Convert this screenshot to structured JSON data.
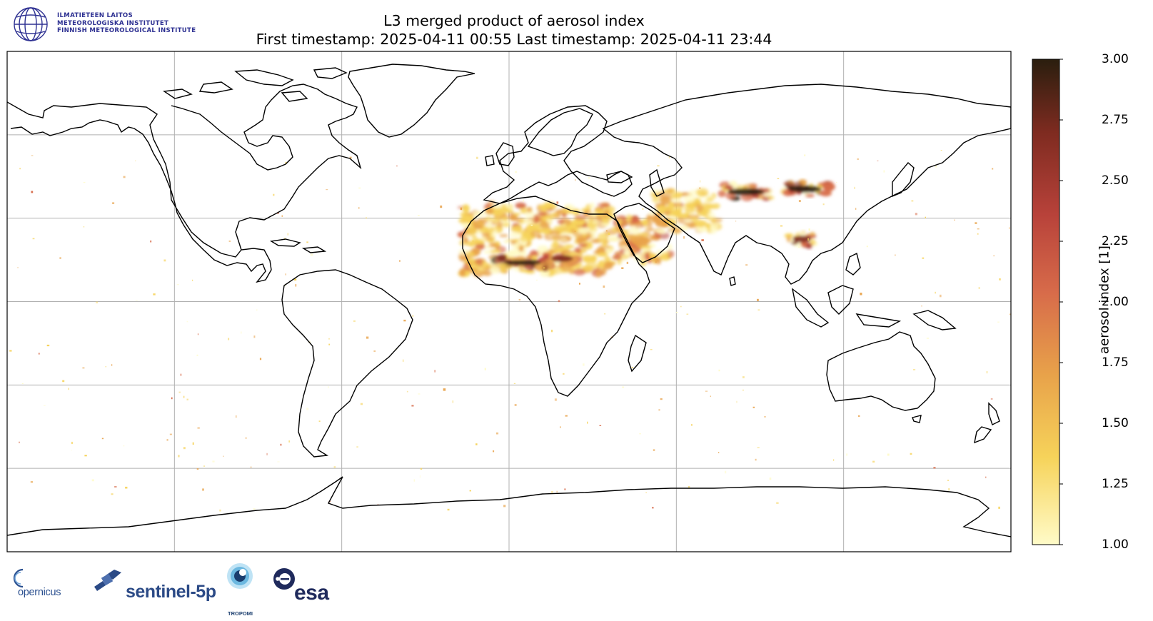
{
  "header": {
    "title_line1": "L3 merged product of aerosol index",
    "title_line2": "First timestamp: 2025-04-11 00:55   Last timestamp: 2025-04-11 23:44"
  },
  "institute": {
    "line1": "ILMATIETEEN LAITOS",
    "line2": "METEOROLOGISKA INSTITUTET",
    "line3": "FINNISH METEOROLOGICAL INSTITUTE",
    "color": "#2e3192"
  },
  "colorbar": {
    "label": "aerosol index [1]",
    "min": 1.0,
    "max": 3.0,
    "ticks": [
      "1.00",
      "1.25",
      "1.50",
      "1.75",
      "2.00",
      "2.25",
      "2.50",
      "2.75",
      "3.00"
    ],
    "colormap": "afmhot_r",
    "colors": [
      "#fffbc8",
      "#f6d35a",
      "#e8a24a",
      "#d76b4a",
      "#b8423a",
      "#7e2b20",
      "#2a1e0e"
    ]
  },
  "map": {
    "projection": "plate-carree",
    "extent": [
      -180,
      180,
      -90,
      90
    ],
    "grid": true,
    "hotspots": [
      {
        "region": "Sahara",
        "lon": [
          -17,
          37
        ],
        "lat": [
          10,
          35
        ],
        "level": 2.0
      },
      {
        "region": "Sahel",
        "lon": [
          -5,
          15
        ],
        "lat": [
          12,
          16
        ],
        "level": 3.0
      },
      {
        "region": "Chad basin",
        "lon": [
          13,
          25
        ],
        "lat": [
          13,
          18
        ],
        "level": 2.6
      },
      {
        "region": "Arabian Peninsula",
        "lon": [
          37,
          58
        ],
        "lat": [
          14,
          30
        ],
        "level": 2.2
      },
      {
        "region": "Iran-Afghanistan",
        "lon": [
          52,
          75
        ],
        "lat": [
          25,
          40
        ],
        "level": 1.8
      },
      {
        "region": "Taklamakan",
        "lon": [
          75,
          95
        ],
        "lat": [
          37,
          42
        ],
        "level": 3.0
      },
      {
        "region": "Gobi",
        "lon": [
          97,
          115
        ],
        "lat": [
          38,
          43
        ],
        "level": 3.0
      },
      {
        "region": "Southeast Asia",
        "lon": [
          100,
          110
        ],
        "lat": [
          20,
          25
        ],
        "level": 2.5
      }
    ]
  },
  "logos": {
    "copernicus": "opernicus",
    "sentinel": "sentinel-5p",
    "tropomi": "TROPOMI",
    "esa": "esa"
  }
}
